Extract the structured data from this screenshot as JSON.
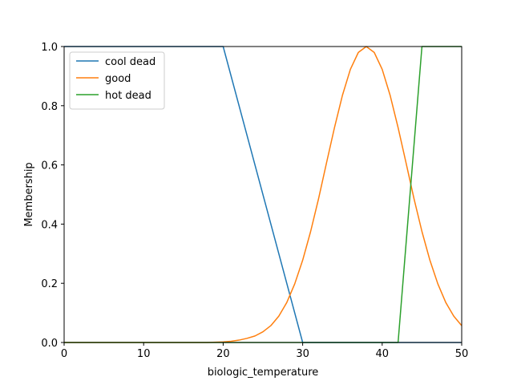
{
  "chart_data": {
    "type": "line",
    "title": "",
    "xlabel": "biologic_temperature",
    "ylabel": "Membership",
    "xlim": [
      0,
      50
    ],
    "ylim": [
      0,
      1.0
    ],
    "xticks": [
      0,
      10,
      20,
      30,
      40,
      50
    ],
    "yticks": [
      0.0,
      0.2,
      0.4,
      0.6,
      0.8,
      1.0
    ],
    "xtick_labels": [
      "0",
      "10",
      "20",
      "30",
      "40",
      "50"
    ],
    "ytick_labels": [
      "0.0",
      "0.2",
      "0.4",
      "0.6",
      "0.8",
      "1.0"
    ],
    "grid": false,
    "legend_position": "upper-left",
    "series": [
      {
        "name": "cool dead",
        "color": "#1f77b4",
        "x": [
          0,
          20,
          30,
          50
        ],
        "y": [
          1.0,
          1.0,
          0.0,
          0.0
        ]
      },
      {
        "name": "good",
        "color": "#ff7f0e",
        "x": [
          0,
          18,
          20,
          21,
          22,
          23,
          24,
          25,
          26,
          27,
          28,
          29,
          30,
          31,
          32,
          33,
          34,
          35,
          36,
          37,
          38,
          39,
          40,
          41,
          42,
          43,
          44,
          45,
          46,
          47,
          48,
          49,
          50
        ],
        "y": [
          0.0,
          0.0,
          0.002,
          0.004,
          0.008,
          0.014,
          0.022,
          0.036,
          0.057,
          0.089,
          0.135,
          0.198,
          0.278,
          0.375,
          0.486,
          0.607,
          0.726,
          0.835,
          0.923,
          0.98,
          1.0,
          0.98,
          0.923,
          0.835,
          0.726,
          0.607,
          0.486,
          0.375,
          0.278,
          0.198,
          0.135,
          0.089,
          0.057
        ]
      },
      {
        "name": "hot dead",
        "color": "#2ca02c",
        "x": [
          0,
          42,
          45,
          50
        ],
        "y": [
          0.0,
          0.0,
          1.0,
          1.0
        ]
      }
    ]
  }
}
